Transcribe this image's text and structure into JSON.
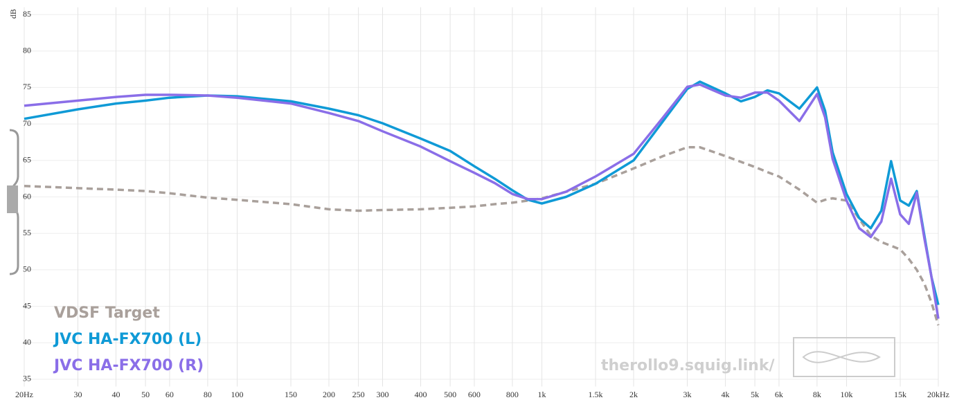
{
  "chart_data": {
    "type": "line",
    "y_label": "dB",
    "xlim": [
      20,
      20000
    ],
    "ylim": [
      34,
      86
    ],
    "log_x": true,
    "grid": true,
    "xticks": [
      {
        "value": 20,
        "label": "20Hz"
      },
      30,
      40,
      50,
      60,
      80,
      100,
      150,
      200,
      250,
      300,
      400,
      500,
      600,
      800,
      {
        "value": 1000,
        "label": "1k"
      },
      {
        "value": 1500,
        "label": "1.5k"
      },
      {
        "value": 2000,
        "label": "2k"
      },
      {
        "value": 3000,
        "label": "3k"
      },
      {
        "value": 4000,
        "label": "4k"
      },
      {
        "value": 5000,
        "label": "5k"
      },
      {
        "value": 6000,
        "label": "6k"
      },
      {
        "value": 8000,
        "label": "8k"
      },
      {
        "value": 10000,
        "label": "10k"
      },
      {
        "value": 15000,
        "label": "15k"
      },
      {
        "value": 20000,
        "label": "20kHz"
      }
    ],
    "yticks": [
      35,
      40,
      45,
      50,
      55,
      60,
      65,
      70,
      75,
      80,
      85
    ],
    "x": [
      20,
      30,
      40,
      50,
      60,
      80,
      100,
      150,
      200,
      250,
      300,
      400,
      500,
      600,
      700,
      800,
      900,
      1000,
      1200,
      1500,
      2000,
      2500,
      3000,
      3300,
      4000,
      4500,
      5000,
      5500,
      6000,
      7000,
      8000,
      8500,
      9000,
      10000,
      11000,
      12000,
      13000,
      14000,
      15000,
      16000,
      17000,
      18000,
      19000,
      20000
    ],
    "series": [
      {
        "name": "VDSF Target",
        "color": "#a9a09b",
        "dashed": true,
        "values": [
          61.5,
          61.2,
          61.0,
          60.8,
          60.5,
          59.9,
          59.6,
          59.0,
          58.3,
          58.1,
          58.2,
          58.3,
          58.5,
          58.7,
          59.0,
          59.2,
          59.5,
          59.8,
          60.7,
          61.8,
          63.9,
          65.6,
          66.8,
          66.8,
          65.6,
          64.8,
          64.1,
          63.4,
          62.8,
          61.0,
          59.2,
          59.6,
          59.8,
          59.5,
          57.0,
          54.7,
          53.8,
          53.3,
          52.8,
          51.5,
          50.0,
          48.1,
          45.5,
          42.4
        ]
      },
      {
        "name": "JVC HA-FX700 (L)",
        "color": "#0f9ad6",
        "values": [
          70.7,
          72.0,
          72.8,
          73.2,
          73.6,
          73.9,
          73.8,
          73.1,
          72.1,
          71.2,
          70.1,
          68.0,
          66.3,
          64.2,
          62.5,
          60.9,
          59.6,
          59.1,
          60.0,
          61.8,
          65.0,
          70.4,
          74.8,
          75.8,
          74.2,
          73.1,
          73.7,
          74.6,
          74.2,
          72.1,
          75.0,
          71.8,
          66.1,
          60.4,
          57.1,
          55.7,
          58.1,
          64.9,
          59.5,
          58.8,
          60.8,
          54.7,
          49.0,
          45.2
        ]
      },
      {
        "name": "JVC HA-FX700 (R)",
        "color": "#8a6ee8",
        "values": [
          72.5,
          73.2,
          73.7,
          74.0,
          74.0,
          73.9,
          73.6,
          72.8,
          71.5,
          70.4,
          69.0,
          66.9,
          64.9,
          63.3,
          61.9,
          60.4,
          59.7,
          59.7,
          60.7,
          62.8,
          65.9,
          70.9,
          75.1,
          75.4,
          73.9,
          73.6,
          74.3,
          74.3,
          73.2,
          70.4,
          74.1,
          70.9,
          65.2,
          59.5,
          55.7,
          54.5,
          56.6,
          62.5,
          57.6,
          56.3,
          60.6,
          54.3,
          49.0,
          43.3
        ]
      }
    ],
    "watermark": "therollo9.squig.link/"
  }
}
